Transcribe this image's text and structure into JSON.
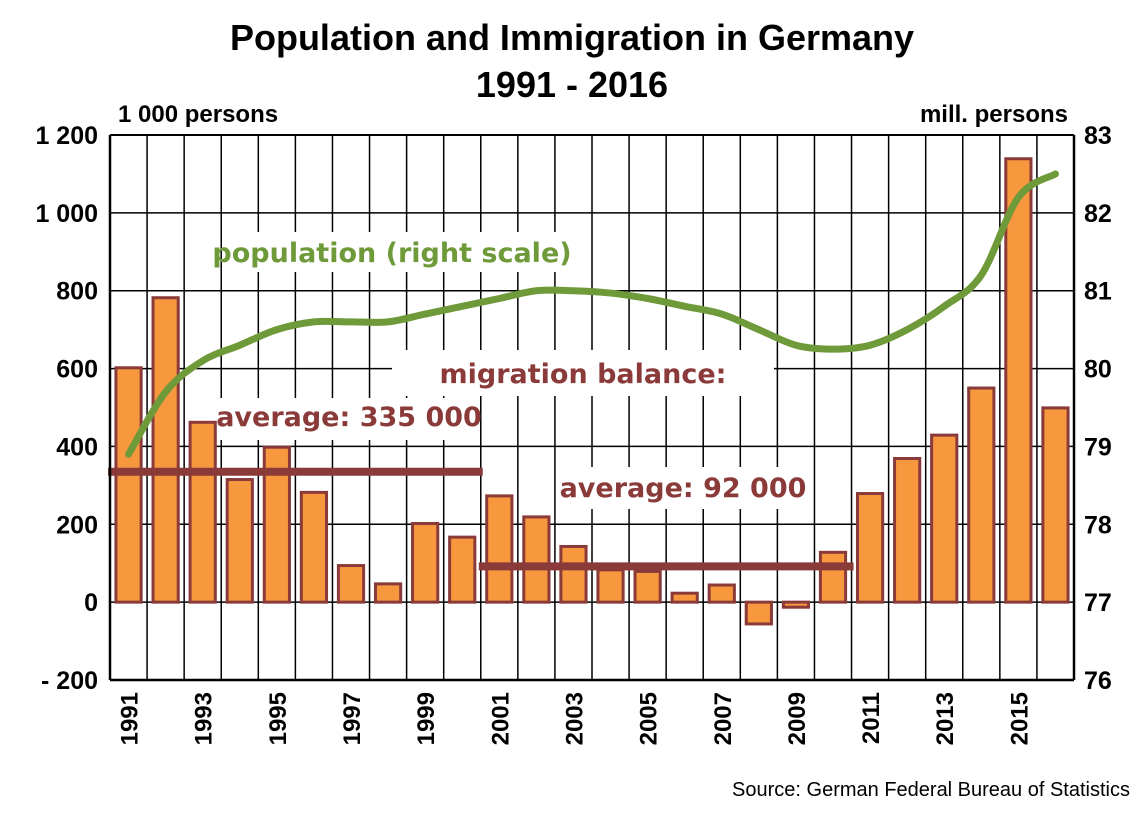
{
  "chart_data": {
    "type": "bar",
    "title": "Population and Immigration in Germany",
    "subtitle": "1991 - 2016",
    "y_left_label": "1 000 persons",
    "y_right_label": "mill. persons",
    "source": "Source: German Federal Bureau of Statistics",
    "ylim_left": [
      -200,
      1200
    ],
    "ylim_right": [
      76,
      83
    ],
    "y_left_ticks": [
      -200,
      0,
      200,
      400,
      600,
      800,
      1000,
      1200
    ],
    "y_left_tick_labels": [
      "- 200",
      "0",
      "200",
      "400",
      "600",
      "800",
      "1 000",
      "1 200"
    ],
    "y_right_ticks": [
      76,
      77,
      78,
      79,
      80,
      81,
      82,
      83
    ],
    "y_right_tick_labels": [
      "76",
      "77",
      "78",
      "79",
      "80",
      "81",
      "82",
      "83"
    ],
    "x_tick_labels": [
      "1991",
      "1993",
      "1995",
      "1997",
      "1999",
      "2001",
      "2003",
      "2005",
      "2007",
      "2009",
      "2011",
      "2013",
      "2015"
    ],
    "grid": true,
    "categories": [
      "1991",
      "1992",
      "1993",
      "1994",
      "1995",
      "1996",
      "1997",
      "1998",
      "1999",
      "2000",
      "2001",
      "2002",
      "2003",
      "2004",
      "2005",
      "2006",
      "2007",
      "2008",
      "2009",
      "2010",
      "2011",
      "2012",
      "2013",
      "2014",
      "2015",
      "2016"
    ],
    "series": [
      {
        "name": "migration balance",
        "type": "bar",
        "axis": "left",
        "color": "#f7973e",
        "edge_color": "#8b3a3a",
        "values": [
          602,
          782,
          462,
          315,
          398,
          282,
          94,
          47,
          202,
          167,
          273,
          219,
          143,
          83,
          79,
          23,
          44,
          -56,
          -13,
          128,
          279,
          369,
          429,
          550,
          1139,
          499
        ]
      },
      {
        "name": "population",
        "type": "line",
        "axis": "right",
        "color": "#6f9a3a",
        "values": [
          78.9,
          79.7,
          80.1,
          80.3,
          80.5,
          80.6,
          80.6,
          80.6,
          80.7,
          80.8,
          80.9,
          81.0,
          81.0,
          80.97,
          80.9,
          80.8,
          80.7,
          80.5,
          80.3,
          80.25,
          80.3,
          80.5,
          80.8,
          81.2,
          82.2,
          82.5
        ]
      }
    ],
    "averages": [
      {
        "label": "average: 335 000",
        "value": 335,
        "from": "1991",
        "to": "2000",
        "color": "#8b3a3a"
      },
      {
        "label": "average: 92 000",
        "value": 92,
        "from": "2001",
        "to": "2010",
        "color": "#8b3a3a"
      }
    ],
    "annotations": {
      "population": "population (right scale)",
      "migration": "migration balance:"
    },
    "colors": {
      "annotation_green": "#6f9a3a",
      "annotation_red": "#8b3a3a"
    }
  }
}
